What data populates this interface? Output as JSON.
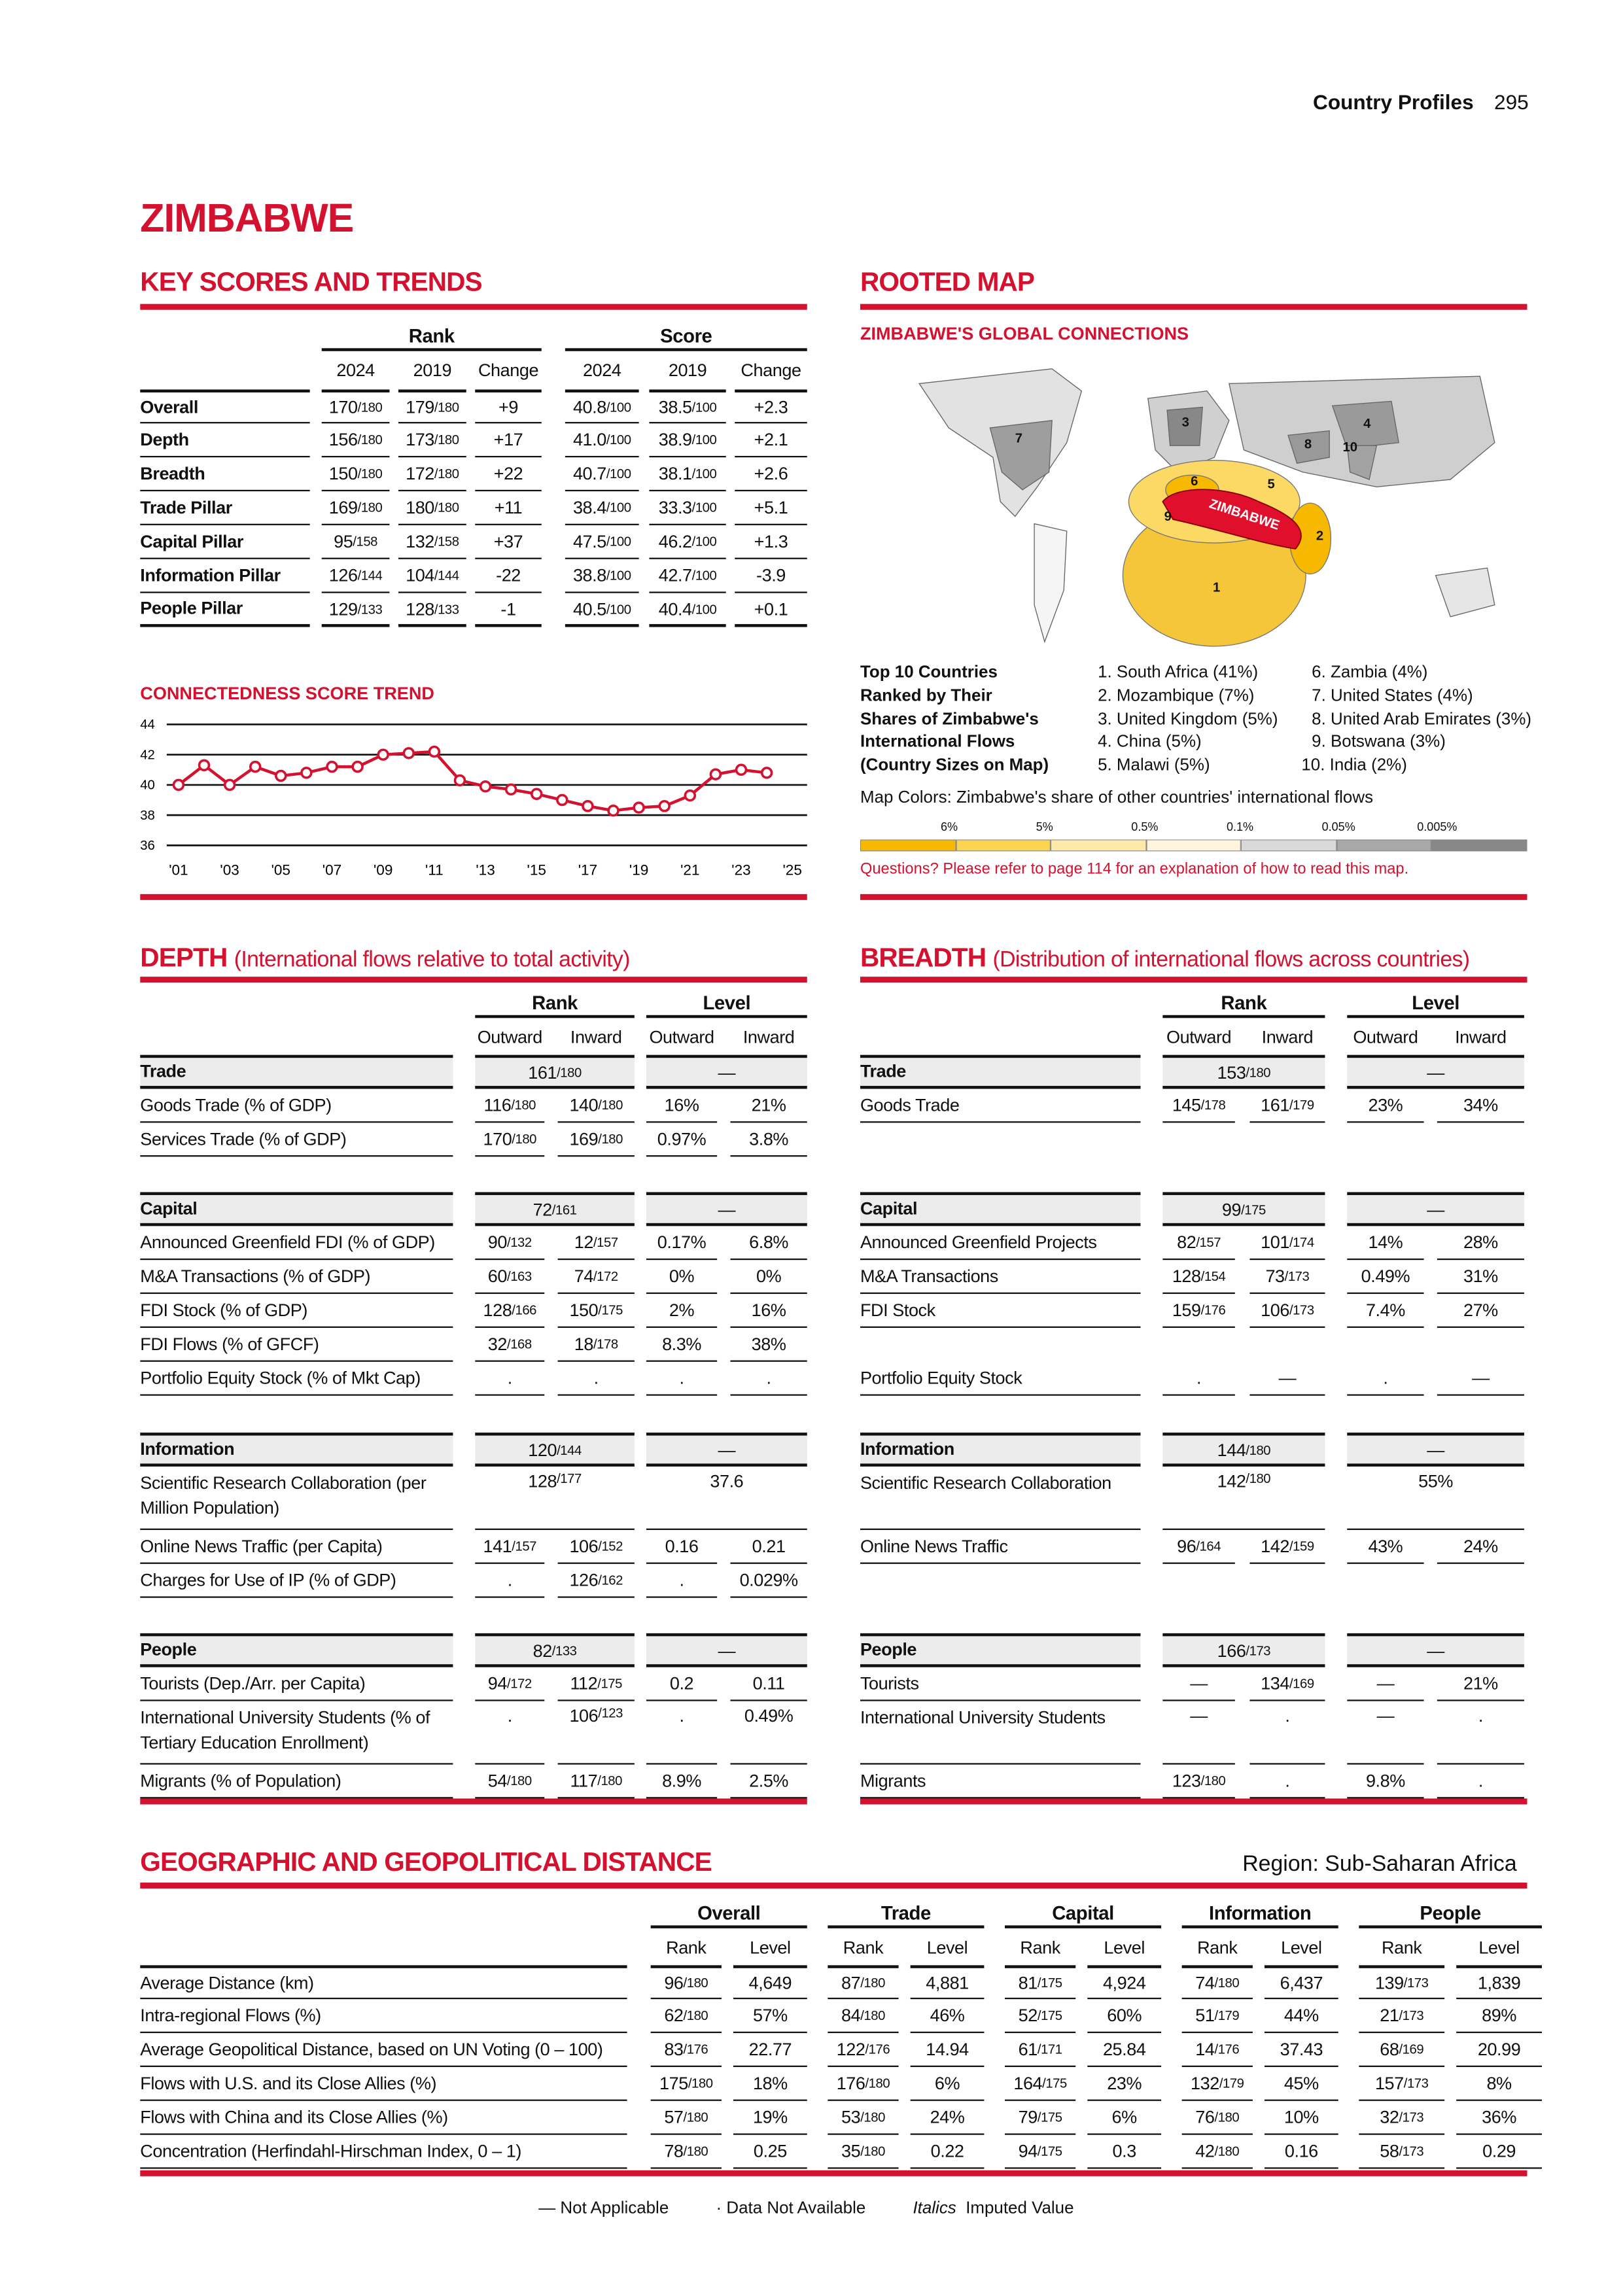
{
  "header": {
    "section": "Country Profiles",
    "page_number": "295"
  },
  "country": "ZIMBABWE",
  "key_scores": {
    "title": "KEY SCORES AND TRENDS",
    "group_headers": [
      "Rank",
      "Score"
    ],
    "sub_headers": [
      "2024",
      "2019",
      "Change",
      "2024",
      "2019",
      "Change"
    ],
    "rows": [
      {
        "label": "Overall",
        "values": [
          "170/180",
          "179/180",
          "+9",
          "40.8/100",
          "38.5/100",
          "+2.3"
        ]
      },
      {
        "label": "Depth",
        "values": [
          "156/180",
          "173/180",
          "+17",
          "41.0/100",
          "38.9/100",
          "+2.1"
        ]
      },
      {
        "label": "Breadth",
        "values": [
          "150/180",
          "172/180",
          "+22",
          "40.7/100",
          "38.1/100",
          "+2.6"
        ]
      },
      {
        "label": "Trade Pillar",
        "values": [
          "169/180",
          "180/180",
          "+11",
          "38.4/100",
          "33.3/100",
          "+5.1"
        ]
      },
      {
        "label": "Capital Pillar",
        "values": [
          "95/158",
          "132/158",
          "+37",
          "47.5/100",
          "46.2/100",
          "+1.3"
        ]
      },
      {
        "label": "Information Pillar",
        "values": [
          "126/144",
          "104/144",
          "-22",
          "38.8/100",
          "42.7/100",
          "-3.9"
        ]
      },
      {
        "label": "People Pillar",
        "values": [
          "129/133",
          "128/133",
          "-1",
          "40.5/100",
          "40.4/100",
          "+0.1"
        ]
      }
    ]
  },
  "chart_data": {
    "type": "line",
    "title": "CONNECTEDNESS SCORE TREND",
    "x": [
      2001,
      2002,
      2003,
      2004,
      2005,
      2006,
      2007,
      2008,
      2009,
      2010,
      2011,
      2012,
      2013,
      2014,
      2015,
      2016,
      2017,
      2018,
      2019,
      2020,
      2021,
      2022,
      2023,
      2024
    ],
    "values": [
      40.0,
      41.3,
      40.0,
      41.2,
      40.6,
      40.8,
      41.2,
      41.2,
      42.0,
      42.1,
      42.2,
      40.3,
      39.9,
      39.7,
      39.4,
      39.0,
      38.6,
      38.3,
      38.5,
      38.6,
      39.3,
      40.7,
      41.0,
      40.8
    ],
    "ylim": [
      36,
      44
    ],
    "yticks": [
      "44",
      "42",
      "40",
      "38",
      "36"
    ],
    "xticks": [
      "'01",
      "'03",
      "'05",
      "'07",
      "'09",
      "'11",
      "'13",
      "'15",
      "'17",
      "'19",
      "'21",
      "'23",
      "'25"
    ],
    "grid": true,
    "color": "#d4112f"
  },
  "rooted_map": {
    "title": "ROOTED MAP",
    "subtitle": "ZIMBABWE'S GLOBAL CONNECTIONS",
    "map_label": "ZIMBABWE",
    "map_numbers": [
      "1",
      "2",
      "3",
      "4",
      "5",
      "6",
      "7",
      "8",
      "9",
      "10"
    ],
    "top10_heading": [
      "Top 10 Countries",
      "Ranked by Their",
      "Shares of Zimbabwe's",
      "International Flows",
      "(Country Sizes on Map)"
    ],
    "top10": [
      "1. South Africa (41%)",
      "2. Mozambique (7%)",
      "3. United Kingdom (5%)",
      "4. China (5%)",
      "5. Malawi (5%)",
      "6. Zambia (4%)",
      "7. United States (4%)",
      "8. United Arab Emirates (3%)",
      "9. Botswana (3%)",
      "10. India (2%)"
    ],
    "colors_caption": "Map Colors: Zimbabwe's share of other countries' international flows",
    "legend_labels": [
      "6%",
      "5%",
      "0.5%",
      "0.1%",
      "0.05%",
      "0.005%"
    ],
    "legend_colors": [
      "#f6b900",
      "#fbd450",
      "#fde9a8",
      "#fff5dc",
      "#d9d9d9",
      "#a8a8a8",
      "#888888"
    ],
    "question": "Questions? Please refer to page 114 for an explanation of how to read this map."
  },
  "depth": {
    "title": "DEPTH",
    "subtitle": "(International flows relative to total activity)",
    "group_headers": [
      "Rank",
      "Level"
    ],
    "sub_headers": [
      "Outward",
      "Inward",
      "Outward",
      "Inward"
    ],
    "sections": [
      {
        "name": "Trade",
        "rank": "161/180",
        "level": "—",
        "rows": [
          {
            "label": "Goods Trade (% of GDP)",
            "values": [
              "116/180",
              "140/180",
              "16%",
              "21%"
            ]
          },
          {
            "label": "Services Trade (% of GDP)",
            "values": [
              "170/180",
              "169/180",
              "0.97%",
              "3.8%"
            ]
          }
        ]
      },
      {
        "name": "Capital",
        "rank": "72/161",
        "level": "—",
        "rows": [
          {
            "label": "Announced Greenfield FDI (% of GDP)",
            "values": [
              "90/132",
              "12/157",
              "0.17%",
              "6.8%"
            ]
          },
          {
            "label": "M&A Transactions (% of GDP)",
            "values": [
              "60/163",
              "74/172",
              "0%",
              "0%"
            ]
          },
          {
            "label": "FDI Stock (% of GDP)",
            "values": [
              "128/166",
              "150/175",
              "2%",
              "16%"
            ]
          },
          {
            "label": "FDI Flows (% of GFCF)",
            "values": [
              "32/168",
              "18/178",
              "8.3%",
              "38%"
            ]
          },
          {
            "label": "Portfolio Equity Stock (% of Mkt Cap)",
            "values": [
              ".",
              ".",
              ".",
              "."
            ]
          }
        ]
      },
      {
        "name": "Information",
        "rank": "120/144",
        "level": "—",
        "rows": [
          {
            "label": "Scientific Research Collaboration (per Million Population)",
            "values": [
              "128/177",
              "37.6"
            ]
          },
          {
            "label": "Online News Traffic (per Capita)",
            "values": [
              "141/157",
              "106/152",
              "0.16",
              "0.21"
            ]
          },
          {
            "label": "Charges for Use of IP (% of GDP)",
            "values": [
              ".",
              "126/162",
              ".",
              "0.029%"
            ]
          }
        ]
      },
      {
        "name": "People",
        "rank": "82/133",
        "level": "—",
        "rows": [
          {
            "label": "Tourists (Dep./Arr. per Capita)",
            "values": [
              "94/172",
              "112/175",
              "0.2",
              "0.11"
            ]
          },
          {
            "label": "International University Students (% of Tertiary Education Enrollment)",
            "values": [
              ".",
              "106/123",
              ".",
              "0.49%"
            ]
          },
          {
            "label": "Migrants (% of Population)",
            "values": [
              "54/180",
              "117/180",
              "8.9%",
              "2.5%"
            ]
          }
        ]
      }
    ]
  },
  "breadth": {
    "title": "BREADTH",
    "subtitle": "(Distribution of international flows across countries)",
    "group_headers": [
      "Rank",
      "Level"
    ],
    "sub_headers": [
      "Outward",
      "Inward",
      "Outward",
      "Inward"
    ],
    "sections": [
      {
        "name": "Trade",
        "rank": "153/180",
        "level": "—",
        "rows": [
          {
            "label": "Goods Trade",
            "values": [
              "145/178",
              "161/179",
              "23%",
              "34%"
            ]
          },
          null
        ]
      },
      {
        "name": "Capital",
        "rank": "99/175",
        "level": "—",
        "rows": [
          {
            "label": "Announced Greenfield Projects",
            "values": [
              "82/157",
              "101/174",
              "14%",
              "28%"
            ]
          },
          {
            "label": "M&A Transactions",
            "values": [
              "128/154",
              "73/173",
              "0.49%",
              "31%"
            ]
          },
          {
            "label": "FDI Stock",
            "values": [
              "159/176",
              "106/173",
              "7.4%",
              "27%"
            ]
          },
          null,
          {
            "label": "Portfolio Equity Stock",
            "values": [
              ".",
              "—",
              ".",
              "—"
            ]
          }
        ]
      },
      {
        "name": "Information",
        "rank": "144/180",
        "level": "—",
        "rows": [
          {
            "label": "Scientific Research Collaboration",
            "values": [
              "142/180",
              "55%"
            ]
          },
          {
            "label": "Online News Traffic",
            "values": [
              "96/164",
              "142/159",
              "43%",
              "24%"
            ]
          },
          null
        ]
      },
      {
        "name": "People",
        "rank": "166/173",
        "level": "—",
        "rows": [
          {
            "label": "Tourists",
            "values": [
              "—",
              "134/169",
              "—",
              "21%"
            ]
          },
          {
            "label": "International University Students",
            "values": [
              "—",
              ".",
              "—",
              "."
            ]
          },
          {
            "label": "Migrants",
            "values": [
              "123/180",
              ".",
              "9.8%",
              "."
            ]
          }
        ]
      }
    ]
  },
  "geo": {
    "title": "GEOGRAPHIC AND GEOPOLITICAL DISTANCE",
    "region": "Region: Sub-Saharan Africa",
    "group_headers": [
      "Overall",
      "Trade",
      "Capital",
      "Information",
      "People"
    ],
    "sub_headers": [
      "Rank",
      "Level"
    ],
    "rows": [
      {
        "label": "Average Distance (km)",
        "values": [
          "96/180",
          "4,649",
          "87/180",
          "4,881",
          "81/175",
          "4,924",
          "74/180",
          "6,437",
          "139/173",
          "1,839"
        ]
      },
      {
        "label": "Intra-regional Flows (%)",
        "values": [
          "62/180",
          "57%",
          "84/180",
          "46%",
          "52/175",
          "60%",
          "51/179",
          "44%",
          "21/173",
          "89%"
        ]
      },
      {
        "label": "Average Geopolitical Distance, based on UN Voting (0 – 100)",
        "values": [
          "83/176",
          "22.77",
          "122/176",
          "14.94",
          "61/171",
          "25.84",
          "14/176",
          "37.43",
          "68/169",
          "20.99"
        ]
      },
      {
        "label": "Flows with U.S. and its Close Allies (%)",
        "values": [
          "175/180",
          "18%",
          "176/180",
          "6%",
          "164/175",
          "23%",
          "132/179",
          "45%",
          "157/173",
          "8%"
        ]
      },
      {
        "label": "Flows with China and its Close Allies (%)",
        "values": [
          "57/180",
          "19%",
          "53/180",
          "24%",
          "79/175",
          "6%",
          "76/180",
          "10%",
          "32/173",
          "36%"
        ]
      },
      {
        "label": "Concentration (Herfindahl-Hirschman Index, 0 – 1)",
        "values": [
          "78/180",
          "0.25",
          "35/180",
          "0.22",
          "94/175",
          "0.3",
          "42/180",
          "0.16",
          "58/173",
          "0.29"
        ]
      }
    ]
  },
  "legend": {
    "not_applicable_symbol": "—",
    "not_applicable": "Not Applicable",
    "not_available_symbol": "·",
    "not_available": "Data Not Available",
    "imputed_example": "Italics",
    "imputed": "Imputed Value"
  }
}
